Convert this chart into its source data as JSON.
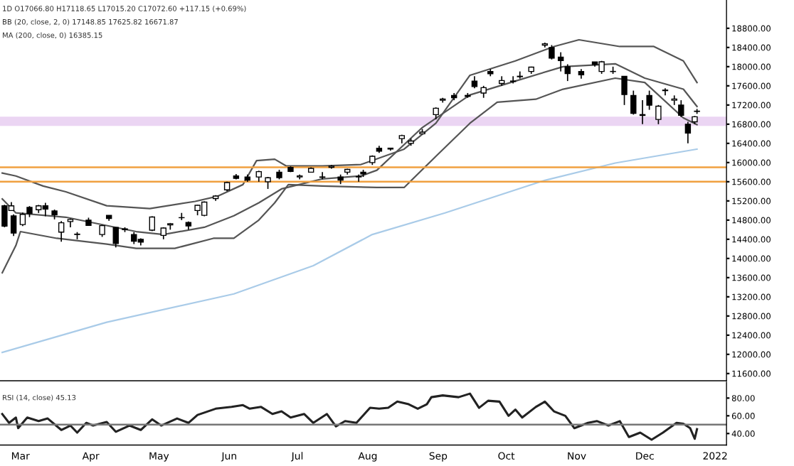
{
  "chart_data": [
    {
      "type": "candlestick",
      "annotations": [
        "1D O17066.80 H17118.65 L17015.20 C17072.60 +117.15 (+0.69%)",
        "BB (20, close, 2, 0) 17148.85 17625.82 16671.87",
        "MA (200, close, 0) 16385.15"
      ],
      "color": "#000000",
      "x": [
        "2021-02-22",
        "2021-02-25",
        "2021-02-26",
        "2021-03-02",
        "2021-03-05",
        "2021-03-09",
        "2021-03-12",
        "2021-03-16",
        "2021-03-19",
        "2021-03-23",
        "2021-03-26",
        "2021-03-31",
        "2021-04-06",
        "2021-04-09",
        "2021-04-12",
        "2021-04-16",
        "2021-04-20",
        "2021-04-23",
        "2021-04-28",
        "2021-05-03",
        "2021-05-06",
        "2021-05-11",
        "2021-05-14",
        "2021-05-18",
        "2021-05-21",
        "2021-05-26",
        "2021-05-31",
        "2021-06-04",
        "2021-06-09",
        "2021-06-14",
        "2021-06-18",
        "2021-06-23",
        "2021-06-28",
        "2021-07-02",
        "2021-07-07",
        "2021-07-12",
        "2021-07-16",
        "2021-07-20",
        "2021-07-23",
        "2021-07-28",
        "2021-07-30",
        "2021-08-03",
        "2021-08-06",
        "2021-08-11",
        "2021-08-16",
        "2021-08-20",
        "2021-08-25",
        "2021-08-31",
        "2021-09-03",
        "2021-09-08",
        "2021-09-14",
        "2021-09-17",
        "2021-09-21",
        "2021-09-24",
        "2021-09-29",
        "2021-10-04",
        "2021-10-07",
        "2021-10-12",
        "2021-10-18",
        "2021-10-21",
        "2021-10-25",
        "2021-10-28",
        "2021-11-03",
        "2021-11-09",
        "2021-11-12",
        "2021-11-17",
        "2021-11-22",
        "2021-11-26",
        "2021-11-30",
        "2021-12-03",
        "2021-12-07",
        "2021-12-10",
        "2021-12-14",
        "2021-12-17",
        "2021-12-20",
        "2021-12-23",
        "2021-12-24"
      ],
      "ohlc": [
        [
          15100,
          15120,
          14650,
          14676
        ],
        [
          15000,
          15176,
          14990,
          15097
        ],
        [
          14888,
          14919,
          14467,
          14529
        ],
        [
          14707,
          14955,
          14676,
          14919
        ],
        [
          15065,
          15092,
          14862,
          14938
        ],
        [
          15015,
          15117,
          14948,
          15098
        ],
        [
          15100,
          15160,
          14880,
          15030
        ],
        [
          14990,
          15020,
          14815,
          14910
        ],
        [
          14550,
          14780,
          14350,
          14744
        ],
        [
          14770,
          14830,
          14650,
          14814
        ],
        [
          14500,
          14550,
          14400,
          14507
        ],
        [
          14800,
          14850,
          14680,
          14690
        ],
        [
          14500,
          14700,
          14450,
          14684
        ],
        [
          14900,
          14900,
          14785,
          14834
        ],
        [
          14645,
          14653,
          14230,
          14311
        ],
        [
          14600,
          14650,
          14550,
          14617
        ],
        [
          14500,
          14550,
          14300,
          14359
        ],
        [
          14400,
          14420,
          14270,
          14341
        ],
        [
          14590,
          14880,
          14570,
          14865
        ],
        [
          14480,
          14650,
          14400,
          14634
        ],
        [
          14700,
          14740,
          14600,
          14724
        ],
        [
          14850,
          14950,
          14800,
          14850
        ],
        [
          14750,
          14770,
          14600,
          14677
        ],
        [
          15000,
          15120,
          14900,
          15108
        ],
        [
          14900,
          15190,
          14880,
          15175
        ],
        [
          15250,
          15320,
          15200,
          15301
        ],
        [
          15430,
          15600,
          15400,
          15583
        ],
        [
          15720,
          15760,
          15650,
          15670
        ],
        [
          15700,
          15750,
          15600,
          15635
        ],
        [
          15700,
          15830,
          15600,
          15811
        ],
        [
          15600,
          15700,
          15450,
          15683
        ],
        [
          15800,
          15850,
          15650,
          15686
        ],
        [
          15900,
          15920,
          15800,
          15814
        ],
        [
          15700,
          15750,
          15650,
          15722
        ],
        [
          15800,
          15900,
          15800,
          15879
        ],
        [
          15700,
          15800,
          15650,
          15692
        ],
        [
          15900,
          15950,
          15870,
          15923
        ],
        [
          15700,
          15750,
          15550,
          15632
        ],
        [
          15800,
          15870,
          15750,
          15856
        ],
        [
          15700,
          15750,
          15600,
          15709
        ],
        [
          15800,
          15850,
          15700,
          15763
        ],
        [
          16000,
          16150,
          15950,
          16130
        ],
        [
          16300,
          16350,
          16200,
          16238
        ],
        [
          16300,
          16300,
          16250,
          16282
        ],
        [
          16500,
          16580,
          16400,
          16563
        ],
        [
          16400,
          16500,
          16350,
          16450
        ],
        [
          16600,
          16700,
          16600,
          16634
        ],
        [
          17000,
          17150,
          16900,
          17132
        ],
        [
          17300,
          17350,
          17250,
          17323
        ],
        [
          17400,
          17450,
          17300,
          17353
        ],
        [
          17400,
          17450,
          17350,
          17380
        ],
        [
          17700,
          17800,
          17550,
          17585
        ],
        [
          17450,
          17600,
          17350,
          17562
        ],
        [
          17900,
          17950,
          17800,
          17853
        ],
        [
          17650,
          17800,
          17600,
          17711
        ],
        [
          17700,
          17800,
          17650,
          17691
        ],
        [
          17800,
          17900,
          17750,
          17790
        ],
        [
          17900,
          18000,
          17850,
          17991
        ],
        [
          18450,
          18500,
          18400,
          18477
        ],
        [
          18400,
          18450,
          18150,
          18178
        ],
        [
          18200,
          18300,
          17900,
          18125
        ],
        [
          18000,
          18050,
          17700,
          17857
        ],
        [
          17900,
          17950,
          17750,
          17829
        ],
        [
          18100,
          18100,
          18000,
          18044
        ],
        [
          17900,
          18120,
          17850,
          18102
        ],
        [
          17900,
          18000,
          17850,
          17898
        ],
        [
          17800,
          17800,
          17200,
          17417
        ],
        [
          17400,
          17500,
          17000,
          17026
        ],
        [
          17000,
          17300,
          16800,
          16983
        ],
        [
          17400,
          17500,
          17100,
          17196
        ],
        [
          16900,
          17200,
          16800,
          17176
        ],
        [
          17500,
          17550,
          17400,
          17511
        ],
        [
          17300,
          17400,
          17200,
          17325
        ],
        [
          17200,
          17300,
          16950,
          16985
        ],
        [
          16800,
          16850,
          16400,
          16614
        ],
        [
          16850,
          16970,
          16800,
          16955
        ],
        [
          17066,
          17118,
          17015,
          17072
        ]
      ],
      "series": [
        {
          "type": "line",
          "color": "#555555",
          "x": [
            "2021-02-21",
            "2021-02-27",
            "2021-03-11",
            "2021-03-21",
            "2021-04-08",
            "2021-04-27",
            "2021-05-17",
            "2021-05-27",
            "2021-06-07",
            "2021-06-13",
            "2021-06-21",
            "2021-06-26",
            "2021-07-12",
            "2021-07-29",
            "2021-08-17",
            "2021-08-31",
            "2021-09-15",
            "2021-10-05",
            "2021-10-22",
            "2021-11-02",
            "2021-11-20",
            "2021-12-05",
            "2021-12-18",
            "2021-12-24"
          ],
          "values": [
            15780,
            15720,
            15510,
            15390,
            15100,
            15040,
            15190,
            15300,
            15540,
            16040,
            16070,
            15930,
            15930,
            15960,
            16280,
            16820,
            17820,
            18120,
            18420,
            18560,
            18420,
            18420,
            18120,
            17670
          ]
        },
        {
          "type": "line",
          "color": "#555555",
          "x": [
            "2021-02-21",
            "2021-02-27",
            "2021-03-21",
            "2021-04-21",
            "2021-05-03",
            "2021-05-21",
            "2021-06-03",
            "2021-06-14",
            "2021-06-24",
            "2021-07-12",
            "2021-07-29",
            "2021-08-05",
            "2021-08-25",
            "2021-09-15",
            "2021-10-05",
            "2021-10-26",
            "2021-11-18",
            "2021-12-01",
            "2021-12-18",
            "2021-12-24"
          ],
          "values": [
            15240,
            14950,
            14860,
            14560,
            14500,
            14650,
            14890,
            15160,
            15450,
            15660,
            15720,
            15840,
            16730,
            17410,
            17700,
            18000,
            18060,
            17760,
            17530,
            17170
          ]
        },
        {
          "type": "line",
          "color": "#555555",
          "x": [
            "2021-02-21",
            "2021-02-27",
            "2021-03-01",
            "2021-03-17",
            "2021-04-08",
            "2021-04-21",
            "2021-05-08",
            "2021-05-25",
            "2021-06-03",
            "2021-06-14",
            "2021-06-21",
            "2021-06-27",
            "2021-07-12",
            "2021-08-05",
            "2021-08-17",
            "2021-08-31",
            "2021-09-15",
            "2021-09-27",
            "2021-10-14",
            "2021-10-26",
            "2021-11-18",
            "2021-12-01",
            "2021-12-18",
            "2021-12-24"
          ],
          "values": [
            13700,
            14270,
            14560,
            14420,
            14300,
            14210,
            14210,
            14420,
            14420,
            14800,
            15160,
            15540,
            15510,
            15480,
            15480,
            16130,
            16820,
            17260,
            17320,
            17530,
            17760,
            17670,
            16930,
            16790
          ]
        },
        {
          "type": "line",
          "color": "#a9cbe8",
          "x": [
            "2021-02-21",
            "2021-04-08",
            "2021-06-03",
            "2021-07-08",
            "2021-08-03",
            "2021-09-04",
            "2021-10-18",
            "2021-11-18",
            "2021-12-24"
          ],
          "values": [
            12040,
            12670,
            13260,
            13850,
            14500,
            14950,
            15630,
            15990,
            16280
          ]
        }
      ],
      "ref_lines": [
        {
          "axis": "y",
          "value": 15900,
          "color": "#f0a040"
        },
        {
          "axis": "y",
          "value": 15600,
          "color": "#f0a040"
        }
      ],
      "bands": [
        {
          "axis": "y",
          "from": 16785,
          "to": 16935,
          "color": "#e3c4ef"
        }
      ],
      "xlim": [
        "2021-02-20",
        "2022-01-06"
      ],
      "ylim": [
        11450,
        19390
      ],
      "yticks": [
        {
          "value": 11600,
          "label": "11600.00"
        },
        {
          "value": 12000,
          "label": "12000.00"
        },
        {
          "value": 12400,
          "label": "12400.00"
        },
        {
          "value": 12800,
          "label": "12800.00"
        },
        {
          "value": 13200,
          "label": "13200.00"
        },
        {
          "value": 13600,
          "label": "13600.00"
        },
        {
          "value": 14000,
          "label": "14000.00"
        },
        {
          "value": 14400,
          "label": "14400.00"
        },
        {
          "value": 14800,
          "label": "14800.00"
        },
        {
          "value": 15200,
          "label": "15200.00"
        },
        {
          "value": 15600,
          "label": "15600.00"
        },
        {
          "value": 16000,
          "label": "16000.00"
        },
        {
          "value": 16400,
          "label": "16400.00"
        },
        {
          "value": 16800,
          "label": "16800.00"
        },
        {
          "value": 17200,
          "label": "17200.00"
        },
        {
          "value": 17600,
          "label": "17600.00"
        },
        {
          "value": 18000,
          "label": "18000.00"
        },
        {
          "value": 18400,
          "label": "18400.00"
        },
        {
          "value": 18800,
          "label": "18800.00"
        }
      ],
      "tick_labels": "y"
    },
    {
      "type": "line",
      "annotations": [
        "RSI (14, close) 45.13"
      ],
      "series": [
        {
          "color": "#222222",
          "x": [
            "2021-02-21",
            "2021-02-24",
            "2021-02-27",
            "2021-02-28",
            "2021-03-04",
            "2021-03-09",
            "2021-03-13",
            "2021-03-19",
            "2021-03-23",
            "2021-03-26",
            "2021-03-30",
            "2021-04-02",
            "2021-04-08",
            "2021-04-12",
            "2021-04-18",
            "2021-04-23",
            "2021-04-28",
            "2021-05-02",
            "2021-05-09",
            "2021-05-14",
            "2021-05-18",
            "2021-05-26",
            "2021-06-02",
            "2021-06-07",
            "2021-06-10",
            "2021-06-15",
            "2021-06-20",
            "2021-06-24",
            "2021-06-28",
            "2021-07-04",
            "2021-07-08",
            "2021-07-14",
            "2021-07-18",
            "2021-07-22",
            "2021-07-27",
            "2021-08-02",
            "2021-08-06",
            "2021-08-10",
            "2021-08-14",
            "2021-08-19",
            "2021-08-23",
            "2021-08-27",
            "2021-08-29",
            "2021-09-03",
            "2021-09-10",
            "2021-09-15",
            "2021-09-19",
            "2021-09-23",
            "2021-09-28",
            "2021-10-02",
            "2021-10-05",
            "2021-10-08",
            "2021-10-14",
            "2021-10-18",
            "2021-10-22",
            "2021-10-27",
            "2021-10-31",
            "2021-11-06",
            "2021-11-10",
            "2021-11-15",
            "2021-11-20",
            "2021-11-24",
            "2021-11-29",
            "2021-12-04",
            "2021-12-09",
            "2021-12-15",
            "2021-12-18",
            "2021-12-21",
            "2021-12-23",
            "2021-12-24"
          ],
          "values": [
            62,
            52,
            58,
            46,
            58,
            54,
            57,
            44,
            49,
            41,
            52,
            49,
            53,
            42,
            49,
            44,
            56,
            49,
            57,
            52,
            61,
            68,
            70,
            72,
            68,
            70,
            62,
            65,
            58,
            62,
            52,
            62,
            48,
            54,
            52,
            69,
            68,
            69,
            76,
            73,
            68,
            73,
            81,
            83,
            81,
            85,
            69,
            77,
            76,
            60,
            67,
            58,
            70,
            76,
            65,
            60,
            46,
            52,
            54,
            49,
            54,
            36,
            41,
            33,
            41,
            52,
            51,
            46,
            34,
            45
          ]
        }
      ],
      "ref_lines": [
        {
          "axis": "y",
          "value": 50,
          "color": "#777777"
        }
      ],
      "xlim": [
        "2021-02-20",
        "2022-01-06"
      ],
      "xticks": [
        {
          "value": "2021-03-01",
          "label": "Mar"
        },
        {
          "value": "2021-04-01",
          "label": "Apr"
        },
        {
          "value": "2021-05-01",
          "label": "May"
        },
        {
          "value": "2021-06-01",
          "label": "Jun"
        },
        {
          "value": "2021-07-01",
          "label": "Jul"
        },
        {
          "value": "2021-08-01",
          "label": "Aug"
        },
        {
          "value": "2021-09-01",
          "label": "Sep"
        },
        {
          "value": "2021-10-01",
          "label": "Oct"
        },
        {
          "value": "2021-11-01",
          "label": "Nov"
        },
        {
          "value": "2021-12-01",
          "label": "Dec"
        },
        {
          "value": "2022-01-01",
          "label": "2022"
        }
      ],
      "ylim": [
        27,
        98
      ],
      "yticks": [
        {
          "value": 40,
          "label": "40.00"
        },
        {
          "value": 60,
          "label": "60.00"
        },
        {
          "value": 80,
          "label": "80.00"
        }
      ]
    }
  ]
}
